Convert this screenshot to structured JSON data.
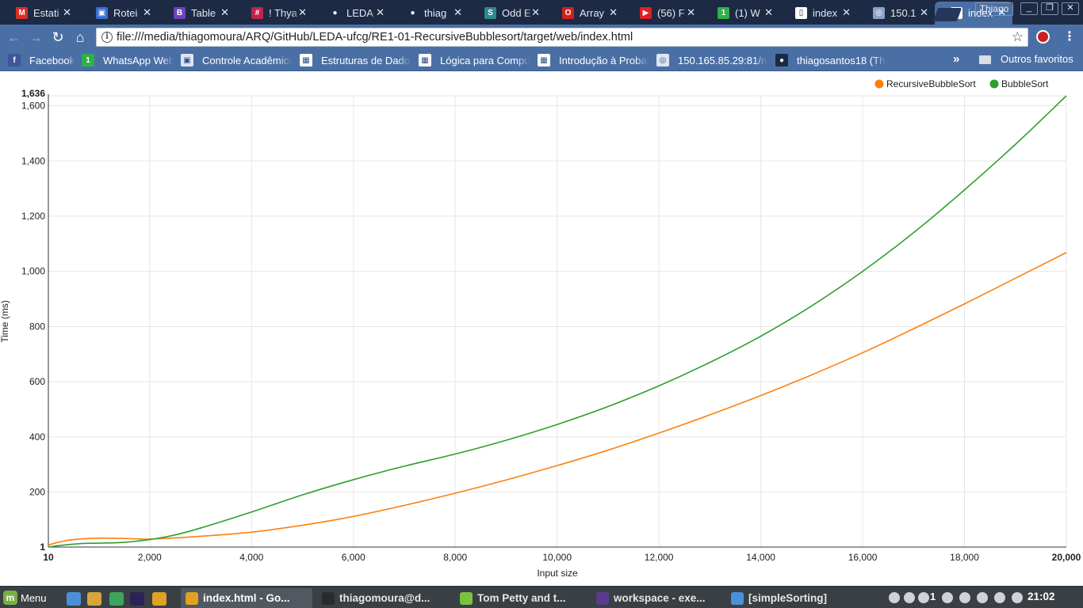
{
  "browser": {
    "tabs": [
      {
        "label": "Estati",
        "icon": "gmail-icon",
        "color": "#d93025",
        "glyph": "M"
      },
      {
        "label": "Rotei",
        "icon": "classroom-icon",
        "color": "#3a6fd8",
        "glyph": "▣"
      },
      {
        "label": "Table",
        "icon": "bootstrap-icon",
        "color": "#6f42c1",
        "glyph": "B"
      },
      {
        "label": "! Thya",
        "icon": "slack-icon",
        "color": "#c0244a",
        "glyph": "#"
      },
      {
        "label": "LEDA",
        "icon": "github-icon",
        "color": "#1c2a44",
        "glyph": "●"
      },
      {
        "label": "thiag",
        "icon": "github-icon",
        "color": "#1c2a44",
        "glyph": "●"
      },
      {
        "label": "Odd E",
        "icon": "stackedit-icon",
        "color": "#2f8a8a",
        "glyph": "S"
      },
      {
        "label": "Array",
        "icon": "oracle-icon",
        "color": "#d42020",
        "glyph": "O"
      },
      {
        "label": "(56) F",
        "icon": "youtube-icon",
        "color": "#e02020",
        "glyph": "▶"
      },
      {
        "label": "(1) W",
        "icon": "whatsapp-icon",
        "color": "#2fb04a",
        "glyph": "1"
      },
      {
        "label": "index",
        "icon": "page-icon",
        "color": "#ffffff",
        "glyph": "▯"
      },
      {
        "label": "150.1",
        "icon": "users-icon",
        "color": "#8aa2c8",
        "glyph": "◎"
      },
      {
        "label": "index",
        "icon": "page-icon",
        "color": "#ffffff",
        "glyph": "▯",
        "active": true
      }
    ],
    "user": "Thiago",
    "url": "file:///media/thiagomoura/ARQ/GitHub/LEDA-ufcg/RE1-01-RecursiveBubblesort/target/web/index.html",
    "bookmarks": [
      {
        "label": "Facebook",
        "icon": "facebook-icon",
        "color": "#3b5998",
        "glyph": "f"
      },
      {
        "label": "WhatsApp Web",
        "icon": "whatsapp-icon",
        "color": "#2fb04a",
        "glyph": "1"
      },
      {
        "label": "Controle Acadêmico",
        "icon": "ufcg-icon",
        "color": "#dfe6f2",
        "glyph": "▣"
      },
      {
        "label": "Estruturas de Dados",
        "icon": "grid-icon",
        "color": "#ffffff",
        "glyph": "▦"
      },
      {
        "label": "Lógica para Computação",
        "icon": "grid-icon",
        "color": "#ffffff",
        "glyph": "▦"
      },
      {
        "label": "Introdução à Probabilidade",
        "icon": "grid-icon",
        "color": "#ffffff",
        "glyph": "▦"
      },
      {
        "label": "150.165.85.29:81/moodle",
        "icon": "users-icon",
        "color": "#dfe6f2",
        "glyph": "◎"
      },
      {
        "label": "thiagosantos18 (Thiago)",
        "icon": "github-icon",
        "color": "#1c2a44",
        "glyph": "●"
      }
    ],
    "bookmarks_more": "»",
    "other_bookmarks": "Outros favoritos"
  },
  "chart_data": {
    "type": "line",
    "xlabel": "Input size",
    "ylabel": "Time (ms)",
    "xlim": [
      10,
      20000
    ],
    "ylim": [
      1,
      1636
    ],
    "x_ticks": [
      10,
      2000,
      4000,
      6000,
      8000,
      10000,
      12000,
      14000,
      16000,
      18000,
      20000
    ],
    "x_tick_labels": [
      "10",
      "2,000",
      "4,000",
      "6,000",
      "8,000",
      "10,000",
      "12,000",
      "14,000",
      "16,000",
      "18,000",
      "20,000"
    ],
    "y_ticks": [
      1,
      200,
      400,
      600,
      800,
      1000,
      1200,
      1400,
      1600,
      1636
    ],
    "y_tick_labels": [
      "1",
      "200",
      "400",
      "600",
      "800",
      "1,000",
      "1,200",
      "1,400",
      "1,600",
      "1,636"
    ],
    "grid": true,
    "legend_position": "top-right",
    "series": [
      {
        "name": "RecursiveBubbleSort",
        "color": "#ff7f0e",
        "x": [
          10,
          200,
          500,
          1000,
          1500,
          2000,
          3000,
          4000,
          5000,
          6000,
          7000,
          8000,
          9000,
          10000,
          11000,
          12000,
          13000,
          14000,
          15000,
          16000,
          17000,
          18000,
          19000,
          20000
        ],
        "y": [
          8,
          18,
          28,
          33,
          32,
          30,
          40,
          55,
          80,
          112,
          152,
          196,
          244,
          296,
          352,
          414,
          480,
          550,
          625,
          705,
          792,
          882,
          975,
          1068
        ]
      },
      {
        "name": "BubbleSort",
        "color": "#2ca02c",
        "x": [
          10,
          300,
          700,
          1000,
          1500,
          2000,
          2500,
          3000,
          4000,
          5000,
          6000,
          7000,
          8000,
          9000,
          10000,
          11000,
          12000,
          13000,
          14000,
          15000,
          16000,
          17000,
          18000,
          19000,
          20000
        ],
        "y": [
          1,
          8,
          14,
          15,
          18,
          28,
          45,
          70,
          128,
          190,
          245,
          294,
          338,
          388,
          445,
          510,
          585,
          670,
          765,
          875,
          1000,
          1140,
          1295,
          1460,
          1636
        ]
      }
    ]
  },
  "taskbar": {
    "menu_label": "Menu",
    "launchers": [
      {
        "icon": "files-icon",
        "color": "#4a90d9"
      },
      {
        "icon": "text-editor-icon",
        "color": "#d9a43b"
      },
      {
        "icon": "browser-icon",
        "color": "#3ba55c"
      },
      {
        "icon": "eclipse-icon",
        "color": "#2c2255"
      },
      {
        "icon": "chrome-icon",
        "color": "#e0a020"
      }
    ],
    "windows": [
      {
        "label": "index.html - Go...",
        "icon": "chrome-icon",
        "color": "#e0a020",
        "active": true
      },
      {
        "label": "thiagomoura@d...",
        "icon": "terminal-icon",
        "color": "#2b2b2b"
      },
      {
        "label": "Tom Petty and t...",
        "icon": "spotify-icon",
        "color": "#7cc043"
      },
      {
        "label": "workspace - exe...",
        "icon": "eclipse-icon",
        "color": "#5a3c8c"
      },
      {
        "label": "[simpleSorting]",
        "icon": "folder-icon",
        "color": "#4a90d9"
      }
    ],
    "notification_count": "1",
    "clock": "21:02"
  }
}
